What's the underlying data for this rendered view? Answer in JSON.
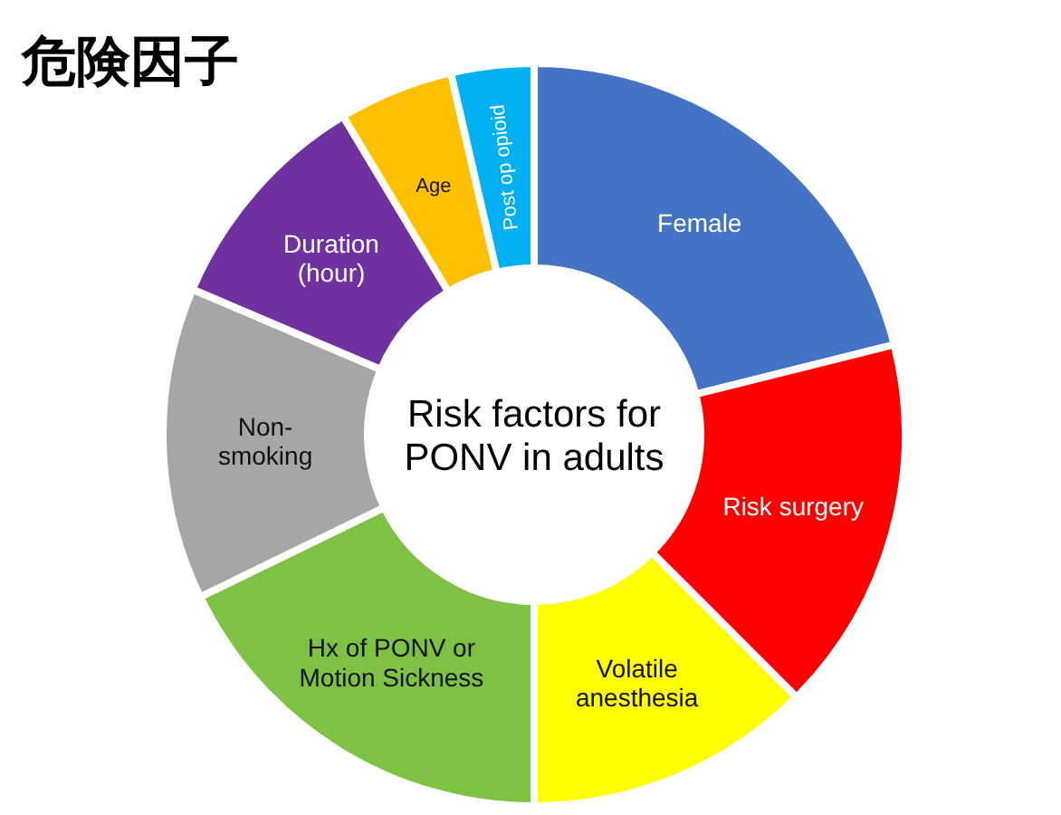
{
  "chart_data": {
    "type": "donut",
    "title": "危険因子",
    "categories": [
      "Female",
      "Risk surgery",
      "Volatile\nanesthesia",
      "Hx of PONV or\nMotion Sickness",
      "Non-\nsmoking",
      "Duration\n(hour)",
      "Age",
      "Post op opioid"
    ],
    "values": [
      21.1,
      16.4,
      12.5,
      17.8,
      13.6,
      10,
      5,
      3.6
    ],
    "colors": [
      "#4472c4",
      "#ff0000",
      "#ffff00",
      "#7dc243",
      "#a6a6a6",
      "#7030a0",
      "#ffc000",
      "#00b0f0"
    ],
    "annotations": [
      "Risk factors for\nPONV in adults"
    ]
  }
}
